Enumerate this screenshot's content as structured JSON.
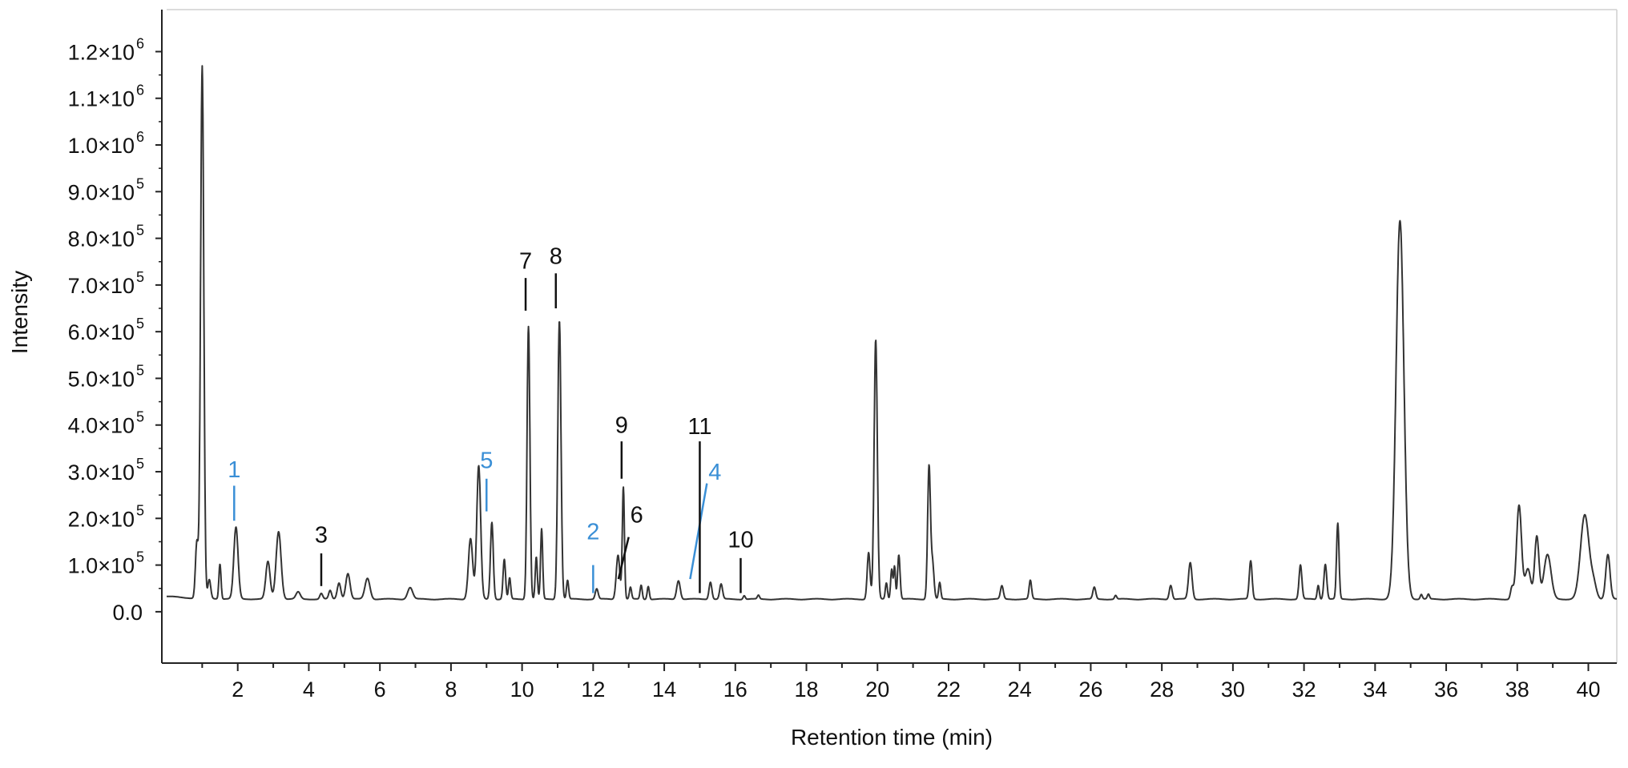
{
  "chart_data": {
    "type": "line",
    "title": "",
    "xlabel": "Retention time (min)",
    "ylabel": "Intensity",
    "xlim": [
      0,
      40.8
    ],
    "ylim": [
      -110000,
      1290000
    ],
    "grid": false,
    "legend": "none",
    "x_ticks": [
      {
        "value": 2,
        "label": "2"
      },
      {
        "value": 4,
        "label": "4"
      },
      {
        "value": 6,
        "label": "6"
      },
      {
        "value": 8,
        "label": "8"
      },
      {
        "value": 10,
        "label": "10"
      },
      {
        "value": 12,
        "label": "12"
      },
      {
        "value": 14,
        "label": "14"
      },
      {
        "value": 16,
        "label": "16"
      },
      {
        "value": 18,
        "label": "18"
      },
      {
        "value": 20,
        "label": "20"
      },
      {
        "value": 22,
        "label": "22"
      },
      {
        "value": 24,
        "label": "24"
      },
      {
        "value": 26,
        "label": "26"
      },
      {
        "value": 28,
        "label": "28"
      },
      {
        "value": 30,
        "label": "30"
      },
      {
        "value": 32,
        "label": "32"
      },
      {
        "value": 34,
        "label": "34"
      },
      {
        "value": 36,
        "label": "36"
      },
      {
        "value": 38,
        "label": "38"
      },
      {
        "value": 40,
        "label": "40"
      }
    ],
    "y_ticks": [
      {
        "value": 0,
        "mantissa": "0.0",
        "exp": ""
      },
      {
        "value": 100000,
        "mantissa": "1.0×10",
        "exp": "5"
      },
      {
        "value": 200000,
        "mantissa": "2.0×10",
        "exp": "5"
      },
      {
        "value": 300000,
        "mantissa": "3.0×10",
        "exp": "5"
      },
      {
        "value": 400000,
        "mantissa": "4.0×10",
        "exp": "5"
      },
      {
        "value": 500000,
        "mantissa": "5.0×10",
        "exp": "5"
      },
      {
        "value": 600000,
        "mantissa": "6.0×10",
        "exp": "5"
      },
      {
        "value": 700000,
        "mantissa": "7.0×10",
        "exp": "5"
      },
      {
        "value": 800000,
        "mantissa": "8.0×10",
        "exp": "5"
      },
      {
        "value": 900000,
        "mantissa": "9.0×10",
        "exp": "5"
      },
      {
        "value": 1000000,
        "mantissa": "1.0×10",
        "exp": "6"
      },
      {
        "value": 1100000,
        "mantissa": "1.1×10",
        "exp": "6"
      },
      {
        "value": 1200000,
        "mantissa": "1.2×10",
        "exp": "6"
      }
    ],
    "baseline": 27000,
    "series": [
      {
        "color": "#333333",
        "peaks": [
          [
            0.85,
            120000,
            0.04
          ],
          [
            1.0,
            1140000,
            0.045
          ],
          [
            1.2,
            40000,
            0.04
          ],
          [
            1.5,
            75000,
            0.03
          ],
          [
            1.95,
            153000,
            0.06
          ],
          [
            2.85,
            80000,
            0.06
          ],
          [
            3.15,
            145000,
            0.07
          ],
          [
            3.7,
            15000,
            0.06
          ],
          [
            4.35,
            12000,
            0.04
          ],
          [
            4.6,
            18000,
            0.04
          ],
          [
            4.85,
            35000,
            0.05
          ],
          [
            5.1,
            55000,
            0.06
          ],
          [
            5.65,
            45000,
            0.07
          ],
          [
            6.85,
            25000,
            0.07
          ],
          [
            8.55,
            130000,
            0.06
          ],
          [
            8.78,
            285000,
            0.055
          ],
          [
            9.15,
            165000,
            0.04
          ],
          [
            9.5,
            85000,
            0.035
          ],
          [
            9.65,
            45000,
            0.03
          ],
          [
            10.18,
            585000,
            0.04
          ],
          [
            10.4,
            90000,
            0.03
          ],
          [
            10.55,
            150000,
            0.03
          ],
          [
            11.05,
            598000,
            0.045
          ],
          [
            11.28,
            40000,
            0.03
          ],
          [
            12.1,
            22000,
            0.04
          ],
          [
            12.7,
            95000,
            0.05
          ],
          [
            12.85,
            240000,
            0.03
          ],
          [
            13.05,
            25000,
            0.03
          ],
          [
            13.35,
            30000,
            0.03
          ],
          [
            13.55,
            28000,
            0.03
          ],
          [
            14.4,
            40000,
            0.05
          ],
          [
            15.3,
            37000,
            0.04
          ],
          [
            15.6,
            32000,
            0.04
          ],
          [
            16.25,
            8000,
            0.03
          ],
          [
            16.65,
            8000,
            0.03
          ],
          [
            19.75,
            100000,
            0.04
          ],
          [
            19.95,
            555000,
            0.045
          ],
          [
            20.25,
            35000,
            0.03
          ],
          [
            20.4,
            65000,
            0.03
          ],
          [
            20.48,
            70000,
            0.025
          ],
          [
            20.6,
            95000,
            0.035
          ],
          [
            21.45,
            285000,
            0.04
          ],
          [
            21.55,
            75000,
            0.04
          ],
          [
            21.75,
            35000,
            0.03
          ],
          [
            23.5,
            28000,
            0.04
          ],
          [
            24.3,
            40000,
            0.035
          ],
          [
            26.1,
            25000,
            0.04
          ],
          [
            26.7,
            8000,
            0.03
          ],
          [
            28.25,
            30000,
            0.04
          ],
          [
            28.8,
            78000,
            0.05
          ],
          [
            30.5,
            82000,
            0.04
          ],
          [
            31.9,
            73000,
            0.04
          ],
          [
            32.4,
            30000,
            0.03
          ],
          [
            32.6,
            75000,
            0.04
          ],
          [
            32.95,
            162000,
            0.035
          ],
          [
            34.7,
            810000,
            0.11
          ],
          [
            35.3,
            10000,
            0.03
          ],
          [
            35.5,
            10000,
            0.03
          ],
          [
            37.85,
            25000,
            0.04
          ],
          [
            38.05,
            200000,
            0.07
          ],
          [
            38.3,
            65000,
            0.08
          ],
          [
            38.55,
            135000,
            0.06
          ],
          [
            38.85,
            95000,
            0.1
          ],
          [
            39.9,
            180000,
            0.12
          ],
          [
            40.15,
            30000,
            0.08
          ],
          [
            40.55,
            95000,
            0.06
          ]
        ]
      }
    ],
    "annotations": [
      {
        "label": "1",
        "x": 1.9,
        "color": "#3a8fd6",
        "marker_top": 270000,
        "marker_bottom": 195000,
        "label_y": 305000,
        "tilt": 0
      },
      {
        "label": "2",
        "x": 12.0,
        "color": "#3a8fd6",
        "marker_top": 100000,
        "marker_bottom": 40000,
        "label_y": 172000,
        "tilt": 0
      },
      {
        "label": "3",
        "x": 4.35,
        "color": "#111111",
        "marker_top": 125000,
        "marker_bottom": 55000,
        "label_y": 165000,
        "tilt": 0
      },
      {
        "label": "4",
        "x": 15.2,
        "color": "#3a8fd6",
        "marker_top": 275000,
        "marker_bottom": 70000,
        "label_y": 300000,
        "tilt": 0.5
      },
      {
        "label": "5",
        "x": 9.0,
        "color": "#3a8fd6",
        "marker_top": 285000,
        "marker_bottom": 215000,
        "label_y": 325000,
        "tilt": 0
      },
      {
        "label": "6",
        "x": 13.0,
        "color": "#111111",
        "marker_top": 160000,
        "marker_bottom": 70000,
        "label_y": 208000,
        "tilt": 0.7
      },
      {
        "label": "7",
        "x": 10.1,
        "color": "#111111",
        "marker_top": 715000,
        "marker_bottom": 645000,
        "label_y": 752000,
        "tilt": 0
      },
      {
        "label": "8",
        "x": 10.95,
        "color": "#111111",
        "marker_top": 725000,
        "marker_bottom": 650000,
        "label_y": 762000,
        "tilt": 0
      },
      {
        "label": "9",
        "x": 12.8,
        "color": "#111111",
        "marker_top": 365000,
        "marker_bottom": 285000,
        "label_y": 400000,
        "tilt": 0
      },
      {
        "label": "10",
        "x": 16.15,
        "color": "#111111",
        "marker_top": 115000,
        "marker_bottom": 40000,
        "label_y": 155000,
        "tilt": 0
      },
      {
        "label": "11",
        "x": 15.0,
        "color": "#111111",
        "marker_top": 365000,
        "marker_bottom": 40000,
        "label_y": 398000,
        "tilt": 0
      }
    ]
  }
}
